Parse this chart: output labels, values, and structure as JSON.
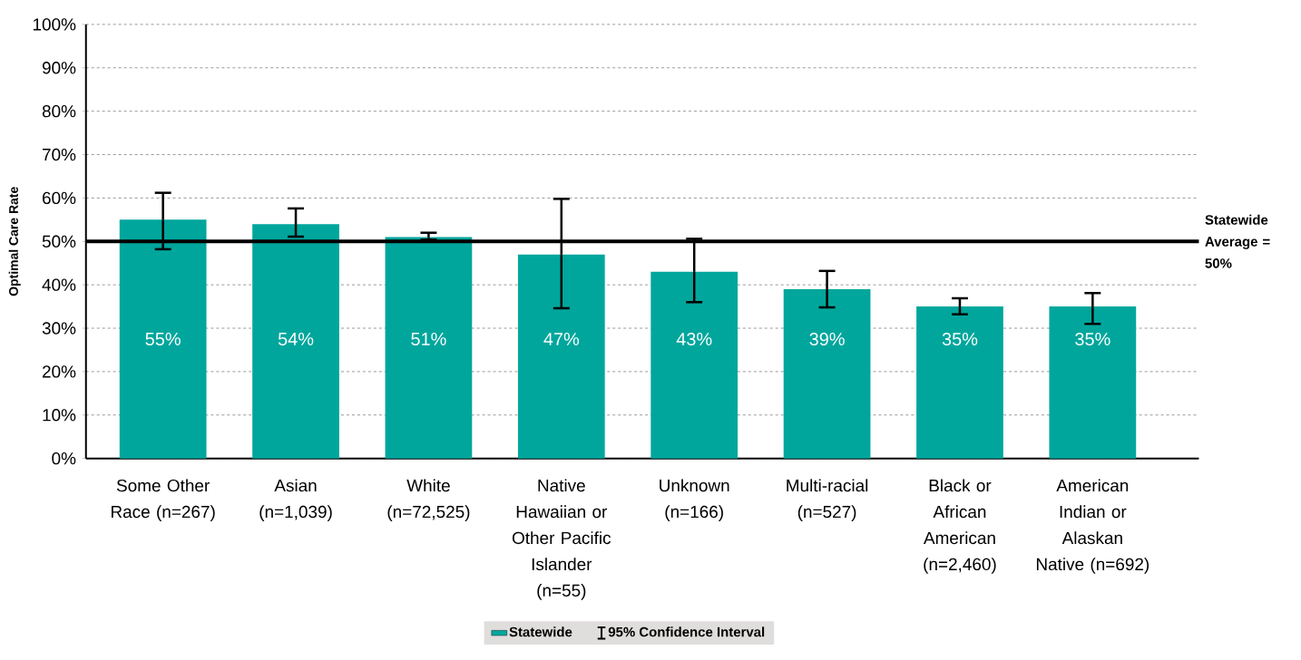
{
  "chart_data": {
    "type": "bar",
    "ylabel": "Optimal Care Rate",
    "categories": [
      "Some Other Race (n=267)",
      "Asian (n=1,039)",
      "White (n=72,525)",
      "Native Hawaiian or Other Pacific Islander (n=55)",
      "Unknown (n=166)",
      "Multi-racial (n=527)",
      "Black or African American (n=2,460)",
      "American Indian or Alaskan Native (n=692)"
    ],
    "series": [
      {
        "name": "Statewide",
        "color": "#00a69c",
        "values": [
          55,
          54,
          51,
          47,
          43,
          39,
          35,
          35
        ],
        "value_labels": [
          "55%",
          "54%",
          "51%",
          "47%",
          "43%",
          "39%",
          "35%",
          "35%"
        ],
        "errors": [
          [
            48.2,
            61.2
          ],
          [
            51.1,
            57.6
          ],
          [
            50.4,
            52.0
          ],
          [
            34.6,
            59.8
          ],
          [
            36.0,
            50.6
          ],
          [
            34.8,
            43.2
          ],
          [
            33.2,
            36.9
          ],
          [
            31.0,
            38.1
          ]
        ]
      }
    ],
    "ylim": [
      0,
      100
    ],
    "yticks": [
      {
        "value": 0,
        "label": "0%"
      },
      {
        "value": 10,
        "label": "10%"
      },
      {
        "value": 20,
        "label": "20%"
      },
      {
        "value": 30,
        "label": "30%"
      },
      {
        "value": 40,
        "label": "40%"
      },
      {
        "value": 50,
        "label": "50%"
      },
      {
        "value": 60,
        "label": "60%"
      },
      {
        "value": 70,
        "label": "70%"
      },
      {
        "value": 80,
        "label": "80%"
      },
      {
        "value": 90,
        "label": "90%"
      },
      {
        "value": 100,
        "label": "100%"
      }
    ],
    "ref_lines": [
      {
        "axis": "y",
        "value": 50,
        "label": "Statewide Average = 50%",
        "color": "#000000"
      }
    ],
    "annotations": [
      "95% Confidence Interval"
    ],
    "grid": "y",
    "legend": "bottom"
  }
}
